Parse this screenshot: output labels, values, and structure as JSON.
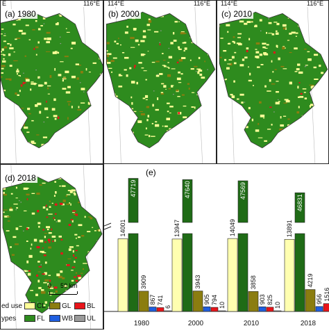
{
  "maps": [
    {
      "label": "(a) 1980",
      "coords": [
        "E",
        "116°E"
      ]
    },
    {
      "label": "(b) 2000",
      "coords": [
        "114°E",
        "116°E"
      ]
    },
    {
      "label": "(c) 2010",
      "coords": [
        "114°E",
        "116°E"
      ]
    },
    {
      "label": "(d) 2018",
      "coords": []
    }
  ],
  "legend": {
    "title_line1": "ed use",
    "title_line2": "ypes",
    "items": [
      {
        "code": "CL",
        "color": "#ffff99"
      },
      {
        "code": "GL",
        "color": "#8b7d10"
      },
      {
        "code": "BL",
        "color": "#e8141a"
      },
      {
        "code": "FL",
        "color": "#2e8b1e"
      },
      {
        "code": "WB",
        "color": "#1f5fe0"
      },
      {
        "code": "UL",
        "color": "#9a9a9a"
      }
    ]
  },
  "scalebar": {
    "start": "0",
    "end": "50 km"
  },
  "chart_data": {
    "type": "bar",
    "panel_label": "(e)",
    "categories": [
      "1980",
      "2000",
      "2010",
      "2018"
    ],
    "series": [
      {
        "code": "CL",
        "color": "#ffffb0",
        "values": [
          14001,
          13947,
          14049,
          13891
        ]
      },
      {
        "code": "FL",
        "color": "#1f6b16",
        "values": [
          47719,
          47640,
          47569,
          46831
        ]
      },
      {
        "code": "GL",
        "color": "#8b7d10",
        "values": [
          3909,
          3943,
          3858,
          4219
        ]
      },
      {
        "code": "WB",
        "color": "#1f5fe0",
        "values": [
          867,
          905,
          903,
          956
        ]
      },
      {
        "code": "BL",
        "color": "#e8141a",
        "values": [
          741,
          794,
          825,
          1516
        ]
      },
      {
        "code": "UL",
        "color": "#9a9a9a",
        "values": [
          6,
          10,
          10,
          13
        ]
      }
    ],
    "value_labels": [
      [
        "14001",
        "47719",
        "3909",
        "867",
        "741",
        "6"
      ],
      [
        "13947",
        "47640",
        "3943",
        "905",
        "794",
        "10"
      ],
      [
        "14049",
        "47569",
        "3858",
        "903",
        "825",
        "10"
      ],
      [
        "13891",
        "46831",
        "4219",
        "956",
        "1516",
        "13"
      ]
    ],
    "axis_break": true
  }
}
